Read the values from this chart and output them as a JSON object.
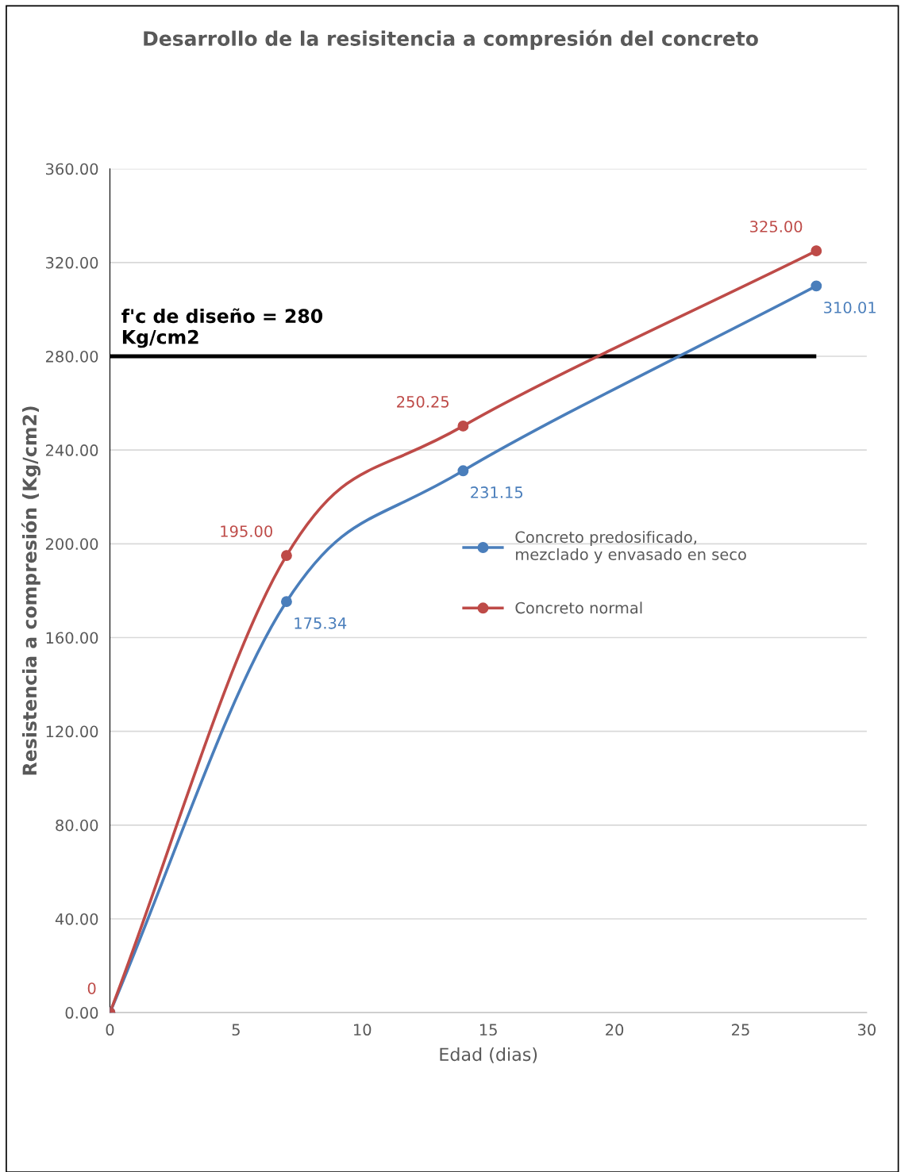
{
  "chart_data": {
    "type": "line",
    "title": "Desarrollo de la resisitencia a compresión del concreto",
    "xlabel": "Edad (dias)",
    "ylabel": "Resistencia a compresión (Kg/cm2)",
    "x": [
      0,
      7,
      14,
      28
    ],
    "series": [
      {
        "name": "Concreto predosificado, mezclado y envasado en seco",
        "color": "#4a7ebb",
        "values": [
          0,
          175.34,
          231.15,
          310.01
        ],
        "value_labels": [
          null,
          "175.34",
          "231.15",
          "310.01"
        ]
      },
      {
        "name": "Concreto normal",
        "color": "#be4b48",
        "values": [
          0,
          195.0,
          250.25,
          325.0
        ],
        "value_labels": [
          "0",
          "195.00",
          "250.25",
          "325.00"
        ]
      }
    ],
    "xlim": [
      0,
      30
    ],
    "xticks": [
      0,
      5,
      10,
      15,
      20,
      25,
      30
    ],
    "ylim": [
      0,
      360
    ],
    "yticks": [
      {
        "value": 0,
        "label": "0.00"
      },
      {
        "value": 40,
        "label": "40.00"
      },
      {
        "value": 80,
        "label": "80.00"
      },
      {
        "value": 120,
        "label": "120.00"
      },
      {
        "value": 160,
        "label": "160.00"
      },
      {
        "value": 200,
        "label": "200.00"
      },
      {
        "value": 240,
        "label": "240.00"
      },
      {
        "value": 280,
        "label": "280.00"
      },
      {
        "value": 320,
        "label": "320.00"
      },
      {
        "value": 360,
        "label": "360.00"
      }
    ],
    "ref_lines": [
      {
        "axis": "y",
        "value": 280,
        "label": "f'c de diseño = 280\nKg/cm2",
        "color": "#000000"
      }
    ],
    "grid": "y",
    "legend": "right",
    "marker": "circle",
    "line_style": "solid"
  }
}
